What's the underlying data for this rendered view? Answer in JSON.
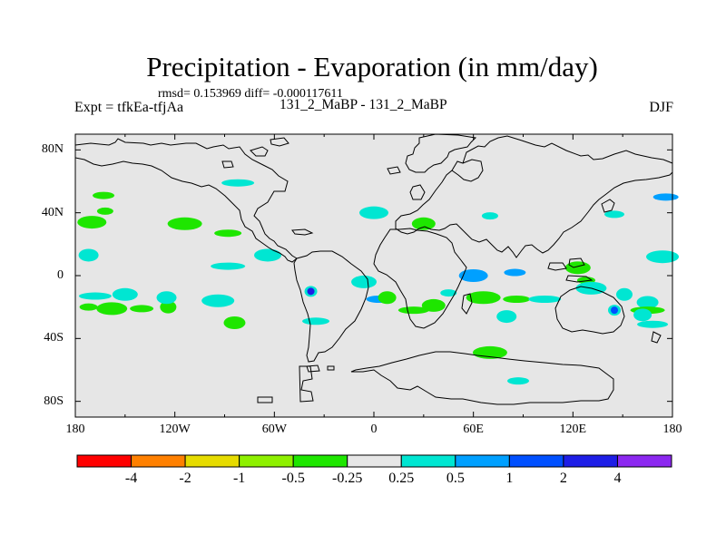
{
  "title": "Precipitation - Evaporation (in mm/day)",
  "stats": "rmsd= 0.153969 diff= -0.000117611",
  "left_label": "Expt = tfkEa-tfjAa",
  "center_label": "131_2_MaBP - 131_2_MaBP",
  "right_label": "DJF",
  "map": {
    "projection": "cylindrical equidistant",
    "background_color": "#e6e6e6",
    "coastline_color": "#000000",
    "lat_ticks": [
      "80N",
      "40N",
      "0",
      "40S",
      "80S"
    ],
    "lat_values": [
      80,
      40,
      0,
      -40,
      -80
    ],
    "lon_ticks": [
      "180",
      "120W",
      "60W",
      "0",
      "60E",
      "120E",
      "180"
    ],
    "lon_values": [
      -180,
      -120,
      -60,
      0,
      60,
      120,
      180
    ]
  },
  "colorbar": {
    "labels": [
      "-4",
      "-2",
      "-1",
      "-0.5",
      "-0.25",
      "0.25",
      "0.5",
      "1",
      "2",
      "4"
    ],
    "colors": [
      "#ff0000",
      "#ff8000",
      "#e6dc00",
      "#8ef000",
      "#1ee600",
      "#e6e6e6",
      "#00e6d2",
      "#00a0ff",
      "#0050ff",
      "#1e1ee6",
      "#8c28f0"
    ]
  },
  "anomalies": [
    {
      "lon": -162,
      "lat": 41,
      "value": -0.5
    },
    {
      "lon": -170,
      "lat": 34,
      "value": -0.5
    },
    {
      "lon": -163,
      "lat": 51,
      "value": -0.5
    },
    {
      "lon": -114,
      "lat": 33,
      "value": -0.5
    },
    {
      "lon": -88,
      "lat": 27,
      "value": -0.5
    },
    {
      "lon": -172,
      "lat": 13,
      "value": 0.25
    },
    {
      "lon": -168,
      "lat": -13,
      "value": 0.25
    },
    {
      "lon": -150,
      "lat": -12,
      "value": 0.25
    },
    {
      "lon": -172,
      "lat": -20,
      "value": -0.5
    },
    {
      "lon": -158,
      "lat": -21,
      "value": -0.5
    },
    {
      "lon": -140,
      "lat": -21,
      "value": -0.5
    },
    {
      "lon": -124,
      "lat": -20,
      "value": -0.5
    },
    {
      "lon": -100,
      "lat": -21,
      "value": -0.25
    },
    {
      "lon": -84,
      "lat": -30,
      "value": -0.5
    },
    {
      "lon": -88,
      "lat": 6,
      "value": 0.25
    },
    {
      "lon": -64,
      "lat": 13,
      "value": 0.25
    },
    {
      "lon": -38,
      "lat": -10,
      "value": 2
    },
    {
      "lon": -94,
      "lat": -16,
      "value": 0.25
    },
    {
      "lon": 3,
      "lat": -15,
      "value": 0.5
    },
    {
      "lon": 8,
      "lat": -14,
      "value": -0.5
    },
    {
      "lon": 24,
      "lat": -22,
      "value": -0.5
    },
    {
      "lon": 36,
      "lat": -19,
      "value": -0.5
    },
    {
      "lon": 45,
      "lat": -11,
      "value": 0.25
    },
    {
      "lon": 60,
      "lat": 0,
      "value": 0.5
    },
    {
      "lon": 85,
      "lat": 2,
      "value": 0.5
    },
    {
      "lon": 66,
      "lat": -14,
      "value": -0.5
    },
    {
      "lon": 86,
      "lat": -15,
      "value": -0.5
    },
    {
      "lon": 80,
      "lat": -26,
      "value": 0.25
    },
    {
      "lon": 103,
      "lat": -15,
      "value": 0.25
    },
    {
      "lon": 123,
      "lat": 5,
      "value": -0.5
    },
    {
      "lon": 128,
      "lat": -3,
      "value": -0.5
    },
    {
      "lon": 131,
      "lat": -8,
      "value": 0.25
    },
    {
      "lon": 131,
      "lat": -15,
      "value": -0.25
    },
    {
      "lon": 151,
      "lat": -12,
      "value": 0.25
    },
    {
      "lon": 145,
      "lat": -22,
      "value": 1
    },
    {
      "lon": 165,
      "lat": -17,
      "value": 0.25
    },
    {
      "lon": 165,
      "lat": -22,
      "value": -0.5
    },
    {
      "lon": 140,
      "lat": 12,
      "value": -0.25
    },
    {
      "lon": 145,
      "lat": 39,
      "value": 0.25
    },
    {
      "lon": 174,
      "lat": 12,
      "value": 0.25
    },
    {
      "lon": 176,
      "lat": 50,
      "value": 0.5
    },
    {
      "lon": 162,
      "lat": -25,
      "value": 0.25
    },
    {
      "lon": 168,
      "lat": -31,
      "value": 0.25
    },
    {
      "lon": 30,
      "lat": 33,
      "value": -0.5
    },
    {
      "lon": 70,
      "lat": 38,
      "value": 0.25
    },
    {
      "lon": 0,
      "lat": 40,
      "value": 0.25
    },
    {
      "lon": 87,
      "lat": -67,
      "value": 0.25
    },
    {
      "lon": 70,
      "lat": -49,
      "value": -0.5
    },
    {
      "lon": -35,
      "lat": -29,
      "value": 0.25
    },
    {
      "lon": -125,
      "lat": -14,
      "value": 0.25
    },
    {
      "lon": -82,
      "lat": 59,
      "value": 0.25
    },
    {
      "lon": -6,
      "lat": -4,
      "value": 0.25
    }
  ]
}
